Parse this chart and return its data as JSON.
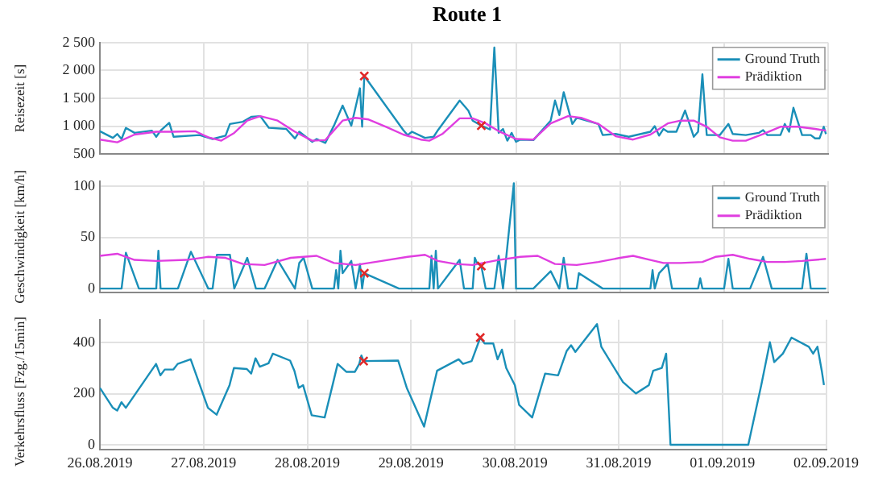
{
  "chart_data": [
    {
      "type": "line",
      "title": "Route 1",
      "ylabel": "Reisezeit [s]",
      "xlim": [
        "2019-08-26",
        "2019-09-02"
      ],
      "ylim": [
        500,
        2500
      ],
      "xticks": [
        {
          "value": "2019-08-26",
          "label": null
        },
        {
          "value": "2019-08-27",
          "label": null
        },
        {
          "value": "2019-08-28",
          "label": null
        },
        {
          "value": "2019-08-29",
          "label": null
        },
        {
          "value": "2019-08-30",
          "label": null
        },
        {
          "value": "2019-08-31",
          "label": null
        },
        {
          "value": "2019-09-01",
          "label": null
        },
        {
          "value": "2019-09-02",
          "label": null
        }
      ],
      "yticks": [
        500,
        {
          "value": 1000,
          "label": "1 000"
        },
        {
          "value": 1500,
          "label": "1 500"
        },
        {
          "value": 2000,
          "label": "2 000"
        },
        {
          "value": 2500,
          "label": "2 500"
        }
      ],
      "tick_labels": "y",
      "grid": true,
      "legend": "top right",
      "series": [
        {
          "name": "Ground Truth",
          "color": "#1a8fb8",
          "x": [
            "2019-08-26T00:00",
            "2019-08-26T03:00",
            "2019-08-26T04:00",
            "2019-08-26T05:00",
            "2019-08-26T06:00",
            "2019-08-26T08:00",
            "2019-08-26T12:00",
            "2019-08-26T13:00",
            "2019-08-26T14:00",
            "2019-08-26T16:00",
            "2019-08-26T17:00",
            "2019-08-26T23:00",
            "2019-08-27T02:00",
            "2019-08-27T05:00",
            "2019-08-27T06:00",
            "2019-08-27T09:00",
            "2019-08-27T11:00",
            "2019-08-27T13:00",
            "2019-08-27T15:00",
            "2019-08-27T19:00",
            "2019-08-27T21:00",
            "2019-08-27T22:00",
            "2019-08-28T01:00",
            "2019-08-28T02:00",
            "2019-08-28T04:00",
            "2019-08-28T06:00",
            "2019-08-28T08:00",
            "2019-08-28T10:00",
            "2019-08-28T12:00",
            "2019-08-28T12:30",
            "2019-08-28T13:00",
            "2019-08-28T22:00",
            "2019-08-28T23:00",
            "2019-08-29T00:00",
            "2019-08-29T03:00",
            "2019-08-29T05:00",
            "2019-08-29T06:00",
            "2019-08-29T11:00",
            "2019-08-29T13:00",
            "2019-08-29T14:00",
            "2019-08-29T16:00",
            "2019-08-29T18:00",
            "2019-08-29T19:00",
            "2019-08-29T20:00",
            "2019-08-29T21:00",
            "2019-08-29T22:00",
            "2019-08-29T23:00",
            "2019-08-30T00:00",
            "2019-08-30T01:00",
            "2019-08-30T04:00",
            "2019-08-30T08:00",
            "2019-08-30T09:00",
            "2019-08-30T10:00",
            "2019-08-30T11:00",
            "2019-08-30T13:00",
            "2019-08-30T14:00",
            "2019-08-30T19:00",
            "2019-08-30T20:00",
            "2019-08-30T23:00",
            "2019-08-31T02:00",
            "2019-08-31T07:00",
            "2019-08-31T08:00",
            "2019-08-31T09:00",
            "2019-08-31T10:00",
            "2019-08-31T11:00",
            "2019-08-31T13:00",
            "2019-08-31T15:00",
            "2019-08-31T17:00",
            "2019-08-31T18:00",
            "2019-08-31T19:00",
            "2019-08-31T20:00",
            "2019-08-31T23:00",
            "2019-09-01T01:00",
            "2019-09-01T02:00",
            "2019-09-01T05:00",
            "2019-09-01T08:00",
            "2019-09-01T09:00",
            "2019-09-01T10:00",
            "2019-09-01T13:00",
            "2019-09-01T14:00",
            "2019-09-01T15:00",
            "2019-09-01T16:00",
            "2019-09-01T18:00",
            "2019-09-01T20:00",
            "2019-09-01T21:00",
            "2019-09-01T22:00",
            "2019-09-01T23:00",
            "2019-09-01T23:30"
          ],
          "values": [
            910,
            790,
            860,
            770,
            970,
            880,
            920,
            810,
            920,
            1060,
            810,
            840,
            770,
            830,
            1040,
            1080,
            1170,
            1180,
            970,
            950,
            780,
            900,
            720,
            770,
            700,
            1010,
            1370,
            1010,
            1680,
            990,
            1900,
            930,
            840,
            900,
            790,
            810,
            930,
            1460,
            1280,
            1100,
            1010,
            940,
            2410,
            880,
            950,
            740,
            880,
            720,
            760,
            750,
            1100,
            1460,
            1200,
            1610,
            1040,
            1150,
            1040,
            840,
            860,
            810,
            900,
            1000,
            830,
            950,
            900,
            900,
            1280,
            810,
            900,
            1930,
            840,
            840,
            1040,
            860,
            840,
            880,
            930,
            840,
            840,
            1040,
            900,
            1330,
            840,
            840,
            780,
            780,
            990,
            860
          ]
        },
        {
          "name": "Prädiktion",
          "color": "#e03ee0",
          "x": [
            "2019-08-26T00:00",
            "2019-08-26T04:00",
            "2019-08-26T08:00",
            "2019-08-26T13:00",
            "2019-08-26T17:00",
            "2019-08-26T22:00",
            "2019-08-27T01:00",
            "2019-08-27T04:00",
            "2019-08-27T07:00",
            "2019-08-27T10:00",
            "2019-08-27T13:00",
            "2019-08-27T17:00",
            "2019-08-27T21:00",
            "2019-08-28T01:00",
            "2019-08-28T04:00",
            "2019-08-28T08:00",
            "2019-08-28T11:00",
            "2019-08-28T14:00",
            "2019-08-28T18:00",
            "2019-08-28T22:00",
            "2019-08-29T02:00",
            "2019-08-29T04:00",
            "2019-08-29T07:00",
            "2019-08-29T11:00",
            "2019-08-29T14:00",
            "2019-08-29T17:00",
            "2019-08-29T20:00",
            "2019-08-30T00:00",
            "2019-08-30T04:00",
            "2019-08-30T08:00",
            "2019-08-30T12:00",
            "2019-08-30T15:00",
            "2019-08-30T19:00",
            "2019-08-30T23:00",
            "2019-08-31T03:00",
            "2019-08-31T07:00",
            "2019-08-31T11:00",
            "2019-08-31T14:00",
            "2019-08-31T17:00",
            "2019-08-31T20:00",
            "2019-08-31T23:00",
            "2019-09-01T02:00",
            "2019-09-01T05:00",
            "2019-09-01T09:00",
            "2019-09-01T13:00",
            "2019-09-01T17:00",
            "2019-09-01T21:00",
            "2019-09-01T23:30"
          ],
          "values": [
            760,
            710,
            850,
            900,
            900,
            910,
            800,
            740,
            880,
            1100,
            1180,
            1100,
            900,
            740,
            750,
            1100,
            1150,
            1120,
            990,
            850,
            760,
            740,
            860,
            1140,
            1140,
            1050,
            910,
            770,
            760,
            1050,
            1180,
            1150,
            1040,
            820,
            760,
            850,
            1050,
            1100,
            1100,
            990,
            800,
            740,
            740,
            860,
            990,
            990,
            950,
            920
          ]
        },
        {
          "type": "scatter",
          "marker": "cross",
          "color": "#e02828",
          "x": [
            "2019-08-28T13:00",
            "2019-08-29T16:00"
          ],
          "values": [
            1900,
            1010
          ]
        }
      ]
    },
    {
      "type": "line",
      "ylabel": "Geschwindigkeit [km/h]",
      "xlim": [
        "2019-08-26",
        "2019-09-02"
      ],
      "ylim": [
        -4,
        105
      ],
      "xticks": [
        {
          "value": "2019-08-26",
          "label": null
        },
        {
          "value": "2019-08-27",
          "label": null
        },
        {
          "value": "2019-08-28",
          "label": null
        },
        {
          "value": "2019-08-29",
          "label": null
        },
        {
          "value": "2019-08-30",
          "label": null
        },
        {
          "value": "2019-08-31",
          "label": null
        },
        {
          "value": "2019-09-01",
          "label": null
        },
        {
          "value": "2019-09-02",
          "label": null
        }
      ],
      "yticks": [
        0,
        50,
        100
      ],
      "tick_labels": "y",
      "grid": true,
      "legend": "top right",
      "series": [
        {
          "name": "Ground Truth",
          "color": "#1a8fb8",
          "x": [
            "2019-08-26T00:00",
            "2019-08-26T05:00",
            "2019-08-26T06:00",
            "2019-08-26T09:00",
            "2019-08-26T13:00",
            "2019-08-26T13:30",
            "2019-08-26T14:00",
            "2019-08-26T18:00",
            "2019-08-26T21:00",
            "2019-08-27T01:00",
            "2019-08-27T02:00",
            "2019-08-27T03:00",
            "2019-08-27T06:00",
            "2019-08-27T07:00",
            "2019-08-27T10:00",
            "2019-08-27T12:00",
            "2019-08-27T14:00",
            "2019-08-27T17:00",
            "2019-08-27T21:00",
            "2019-08-27T22:00",
            "2019-08-27T23:00",
            "2019-08-28T01:00",
            "2019-08-28T06:00",
            "2019-08-28T06:30",
            "2019-08-28T07:00",
            "2019-08-28T07:30",
            "2019-08-28T08:00",
            "2019-08-28T10:00",
            "2019-08-28T11:00",
            "2019-08-28T12:00",
            "2019-08-28T12:30",
            "2019-08-28T13:00",
            "2019-08-28T21:00",
            "2019-08-29T04:00",
            "2019-08-29T04:30",
            "2019-08-29T05:00",
            "2019-08-29T05:30",
            "2019-08-29T06:00",
            "2019-08-29T11:00",
            "2019-08-29T12:00",
            "2019-08-29T14:00",
            "2019-08-29T14:30",
            "2019-08-29T15:00",
            "2019-08-29T16:00",
            "2019-08-29T17:00",
            "2019-08-29T19:00",
            "2019-08-29T20:00",
            "2019-08-29T21:00",
            "2019-08-29T23:30",
            "2019-08-30T00:00",
            "2019-08-30T04:00",
            "2019-08-30T08:00",
            "2019-08-30T10:00",
            "2019-08-30T11:00",
            "2019-08-30T12:00",
            "2019-08-30T14:00",
            "2019-08-30T14:30",
            "2019-08-30T20:00",
            "2019-08-31T07:00",
            "2019-08-31T07:30",
            "2019-08-31T08:00",
            "2019-08-31T09:00",
            "2019-08-31T11:00",
            "2019-08-31T12:00",
            "2019-08-31T18:00",
            "2019-08-31T18:30",
            "2019-08-31T19:00",
            "2019-09-01T00:00",
            "2019-09-01T01:00",
            "2019-09-01T02:00",
            "2019-09-01T06:00",
            "2019-09-01T09:00",
            "2019-09-01T11:00",
            "2019-09-01T18:00",
            "2019-09-01T19:00",
            "2019-09-01T20:00",
            "2019-09-01T23:30"
          ],
          "values": [
            0,
            0,
            35,
            0,
            0,
            37,
            0,
            0,
            36,
            0,
            0,
            33,
            33,
            0,
            30,
            0,
            0,
            28,
            0,
            25,
            30,
            0,
            0,
            18,
            0,
            37,
            15,
            27,
            0,
            24,
            0,
            15,
            0,
            0,
            32,
            0,
            37,
            0,
            28,
            0,
            0,
            30,
            25,
            22,
            0,
            0,
            32,
            0,
            103,
            0,
            0,
            17,
            0,
            30,
            0,
            0,
            15,
            0,
            0,
            18,
            0,
            15,
            24,
            0,
            0,
            10,
            0,
            0,
            29,
            0,
            0,
            31,
            0,
            0,
            34,
            0,
            0
          ]
        },
        {
          "name": "Prädiktion",
          "color": "#e03ee0",
          "x": [
            "2019-08-26T00:00",
            "2019-08-26T04:00",
            "2019-08-26T08:00",
            "2019-08-26T13:00",
            "2019-08-26T20:00",
            "2019-08-27T01:00",
            "2019-08-27T05:00",
            "2019-08-27T09:00",
            "2019-08-27T14:00",
            "2019-08-27T20:00",
            "2019-08-28T02:00",
            "2019-08-28T06:00",
            "2019-08-28T11:00",
            "2019-08-28T17:00",
            "2019-08-28T23:00",
            "2019-08-29T03:00",
            "2019-08-29T06:00",
            "2019-08-29T10:00",
            "2019-08-29T14:00",
            "2019-08-29T20:00",
            "2019-08-30T01:00",
            "2019-08-30T05:00",
            "2019-08-30T09:00",
            "2019-08-30T14:00",
            "2019-08-30T19:00",
            "2019-08-31T00:00",
            "2019-08-31T03:00",
            "2019-08-31T07:00",
            "2019-08-31T10:00",
            "2019-08-31T14:00",
            "2019-08-31T19:00",
            "2019-08-31T22:00",
            "2019-09-01T02:00",
            "2019-09-01T06:00",
            "2019-09-01T10:00",
            "2019-09-01T14:00",
            "2019-09-01T18:00",
            "2019-09-01T23:30"
          ],
          "values": [
            32,
            34,
            28,
            27,
            28,
            31,
            30,
            24,
            23,
            30,
            32,
            25,
            23,
            27,
            31,
            33,
            27,
            24,
            23,
            28,
            31,
            32,
            24,
            23,
            26,
            30,
            32,
            28,
            25,
            25,
            26,
            31,
            33,
            29,
            26,
            26,
            27,
            29
          ]
        },
        {
          "type": "scatter",
          "marker": "cross",
          "color": "#e02828",
          "x": [
            "2019-08-28T13:00",
            "2019-08-29T16:00"
          ],
          "values": [
            15,
            22
          ]
        }
      ]
    },
    {
      "type": "line",
      "ylabel": "Verkehrsfluss [Fzg./15min]",
      "xlim": [
        "2019-08-26",
        "2019-09-02"
      ],
      "ylim": [
        -20,
        490
      ],
      "xticks": [
        {
          "value": "2019-08-26",
          "label": "26.08.2019"
        },
        {
          "value": "2019-08-27",
          "label": "27.08.2019"
        },
        {
          "value": "2019-08-28",
          "label": "28.08.2019"
        },
        {
          "value": "2019-08-29",
          "label": "29.08.2019"
        },
        {
          "value": "2019-08-30",
          "label": "30.08.2019"
        },
        {
          "value": "2019-08-31",
          "label": "31.08.2019"
        },
        {
          "value": "2019-09-01",
          "label": "01.09.2019"
        },
        {
          "value": "2019-09-02",
          "label": "02.09.2019"
        }
      ],
      "yticks": [
        0,
        200,
        400
      ],
      "grid": true,
      "series": [
        {
          "color": "#1a8fb8",
          "x": [
            "2019-08-26T00:00",
            "2019-08-26T03:00",
            "2019-08-26T04:00",
            "2019-08-26T05:00",
            "2019-08-26T06:00",
            "2019-08-26T13:00",
            "2019-08-26T14:00",
            "2019-08-26T15:00",
            "2019-08-26T17:00",
            "2019-08-26T18:00",
            "2019-08-26T21:00",
            "2019-08-27T01:00",
            "2019-08-27T03:00",
            "2019-08-27T06:00",
            "2019-08-27T07:00",
            "2019-08-27T10:00",
            "2019-08-27T11:00",
            "2019-08-27T12:00",
            "2019-08-27T13:00",
            "2019-08-27T15:00",
            "2019-08-27T16:00",
            "2019-08-27T20:00",
            "2019-08-27T21:00",
            "2019-08-27T22:00",
            "2019-08-27T23:00",
            "2019-08-28T01:00",
            "2019-08-28T04:00",
            "2019-08-28T06:00",
            "2019-08-28T07:00",
            "2019-08-28T09:00",
            "2019-08-28T11:00",
            "2019-08-28T12:00",
            "2019-08-28T12:30",
            "2019-08-28T13:00",
            "2019-08-28T21:00",
            "2019-08-28T23:00",
            "2019-08-29T03:00",
            "2019-08-29T04:00",
            "2019-08-29T06:00",
            "2019-08-29T11:00",
            "2019-08-29T12:00",
            "2019-08-29T14:00",
            "2019-08-29T16:00",
            "2019-08-29T17:00",
            "2019-08-29T19:00",
            "2019-08-29T20:00",
            "2019-08-29T21:00",
            "2019-08-29T22:00",
            "2019-08-30T00:00",
            "2019-08-30T01:00",
            "2019-08-30T04:00",
            "2019-08-30T07:00",
            "2019-08-30T10:00",
            "2019-08-30T12:00",
            "2019-08-30T13:00",
            "2019-08-30T14:00",
            "2019-08-30T19:00",
            "2019-08-30T20:00",
            "2019-08-31T01:00",
            "2019-08-31T04:00",
            "2019-08-31T07:00",
            "2019-08-31T08:00",
            "2019-08-31T10:00",
            "2019-08-31T11:00",
            "2019-08-31T12:00",
            "2019-09-01T06:00",
            "2019-09-01T09:00",
            "2019-09-01T11:00",
            "2019-09-01T12:00",
            "2019-09-01T14:00",
            "2019-09-01T16:00",
            "2019-09-01T20:00",
            "2019-09-01T21:00",
            "2019-09-01T22:00",
            "2019-09-01T23:00",
            "2019-09-01T23:30"
          ],
          "values": [
            223,
            145,
            134,
            167,
            145,
            317,
            272,
            295,
            295,
            317,
            335,
            145,
            118,
            234,
            301,
            297,
            279,
            339,
            306,
            319,
            357,
            330,
            290,
            223,
            234,
            116,
            107,
            246,
            317,
            286,
            286,
            317,
            350,
            328,
            330,
            223,
            71,
            145,
            290,
            335,
            317,
            328,
            420,
            397,
            397,
            335,
            373,
            301,
            234,
            156,
            107,
            279,
            272,
            368,
            390,
            364,
            473,
            384,
            246,
            201,
            234,
            290,
            301,
            357,
            0,
            0,
            234,
            402,
            324,
            357,
            420,
            384,
            357,
            384,
            290,
            234
          ]
        },
        {
          "type": "scatter",
          "marker": "cross",
          "color": "#e02828",
          "x": [
            "2019-08-28T13:00",
            "2019-08-29T16:00"
          ],
          "values": [
            328,
            420
          ]
        }
      ]
    }
  ]
}
